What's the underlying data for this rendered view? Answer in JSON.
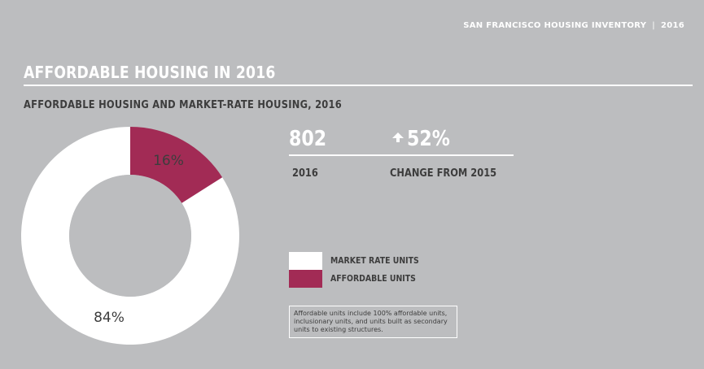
{
  "header": {
    "report_name": "SAN FRANCISCO HOUSING INVENTORY",
    "separator": "|",
    "year": "2016"
  },
  "page_title": "AFFORDABLE HOUSING IN 2016",
  "stats": {
    "units_value": "802",
    "units_label": "2016",
    "change_value": "52%",
    "change_label": "CHANGE FROM 2015",
    "change_direction_icon": "arrow-up-icon"
  },
  "footnote": "Affordable units include 100% affordable units, inclusionary units, and units built as secondary units to existing structures.",
  "colors": {
    "background": "#bcbdbf",
    "market_rate": "#ffffff",
    "affordable": "#a22b55",
    "dark_text": "#3d3d3d"
  },
  "chart_data": {
    "type": "pie",
    "title": "AFFORDABLE HOUSING AND MARKET-RATE HOUSING, 2016",
    "categories": [
      "MARKET RATE UNITS",
      "AFFORDABLE UNITS"
    ],
    "values": [
      84,
      16
    ],
    "data_labels": [
      "84%",
      "16%"
    ],
    "colors": [
      "#ffffff",
      "#a22b55"
    ],
    "donut": true,
    "legend_position": "right"
  }
}
